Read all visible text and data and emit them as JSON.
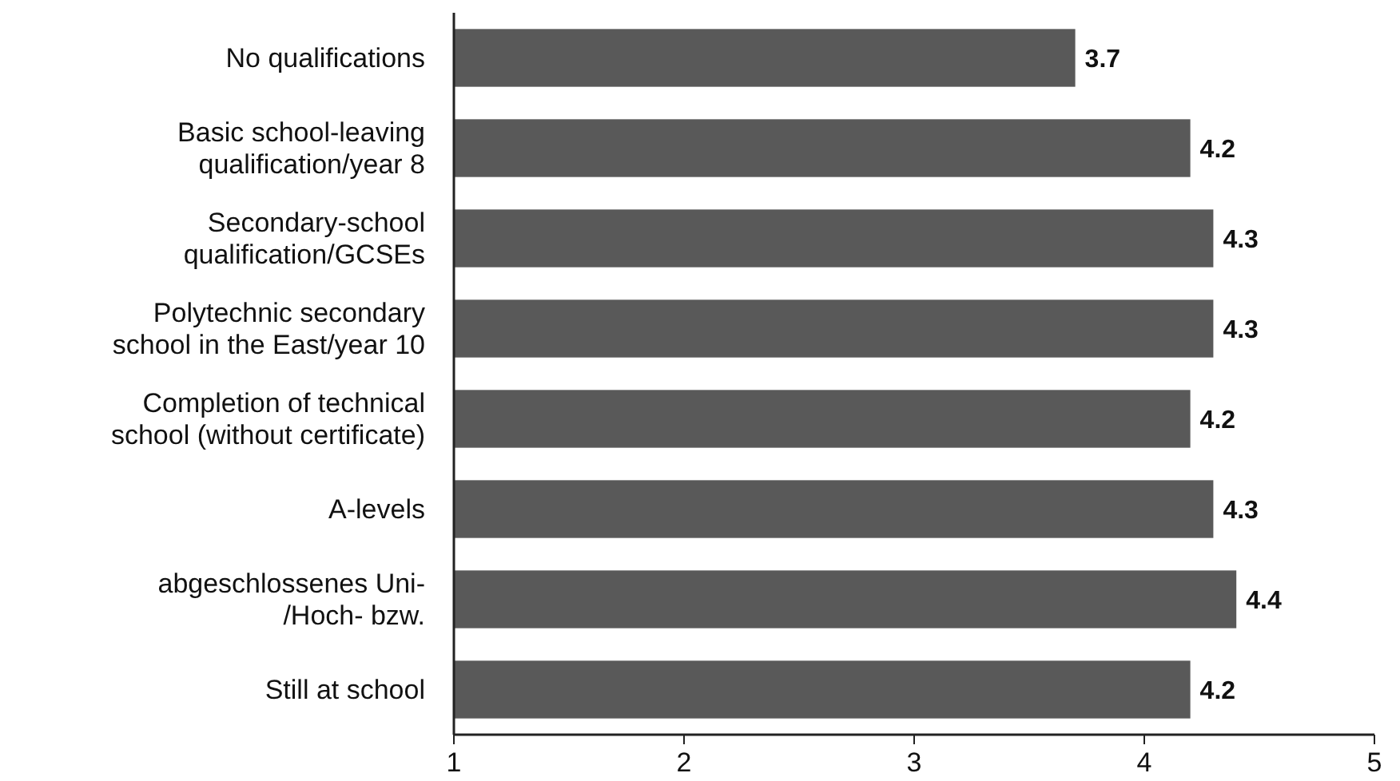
{
  "chart_data": {
    "type": "bar",
    "orientation": "horizontal",
    "categories": [
      "No qualifications",
      "Basic school-leaving\nqualification/year 8",
      "Secondary-school\nqualification/GCSEs",
      "Polytechnic secondary\nschool in the East/year 10",
      "Completion of technical\nschool (without certificate)",
      "A-levels",
      "abgeschlossenes Uni-\n/Hoch- bzw.",
      "Still at school"
    ],
    "values": [
      3.7,
      4.2,
      4.3,
      4.3,
      4.2,
      4.3,
      4.4,
      4.2
    ],
    "color": "#595959",
    "xlim": [
      1,
      5
    ],
    "xticks": [
      1,
      2,
      3,
      4,
      5
    ],
    "data_labels": true
  }
}
